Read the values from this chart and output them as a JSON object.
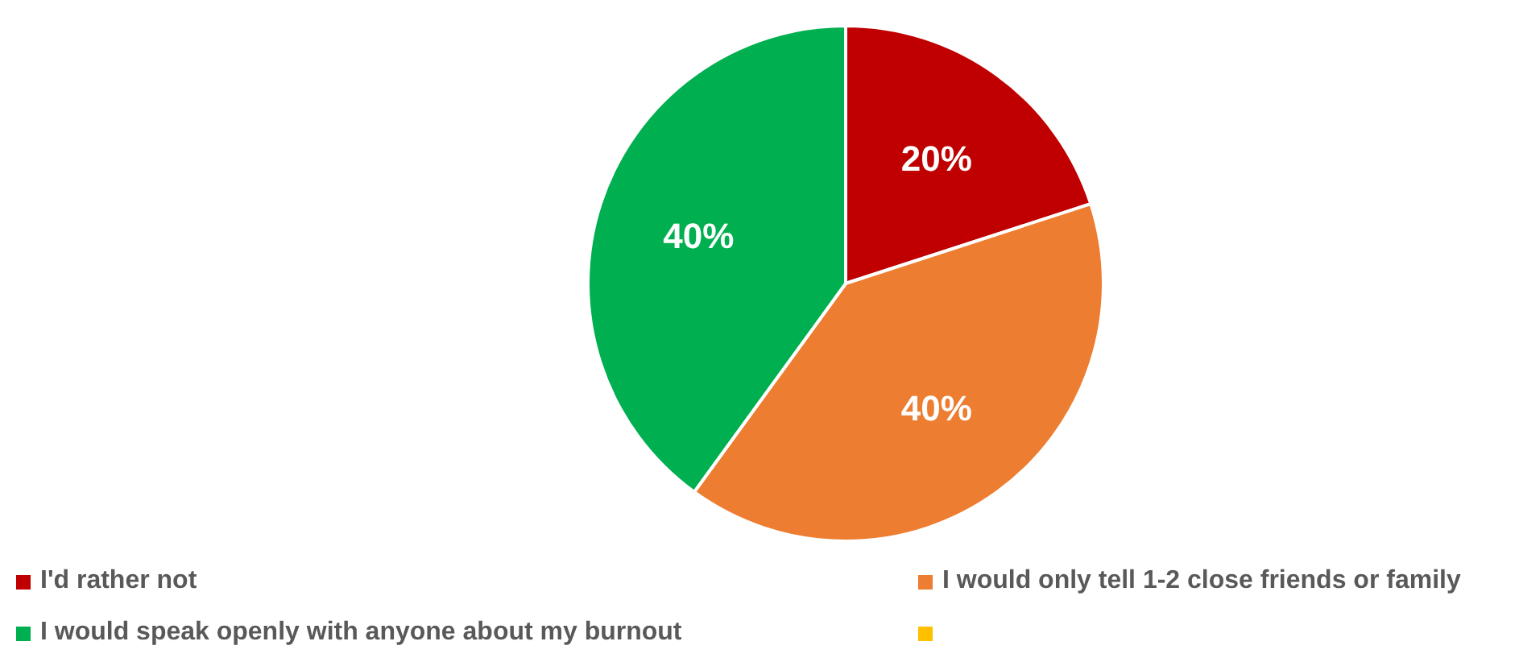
{
  "chart_data": {
    "type": "pie",
    "categories": [
      "I'd rather not",
      "I would only tell 1-2 close friends or family",
      "I would speak openly with anyone about my burnout",
      null
    ],
    "values": [
      20,
      40,
      40,
      0
    ],
    "colors": [
      "#c00000",
      "#ed7d31",
      "#00b050",
      "#ffc000"
    ],
    "value_labels": [
      "20%",
      "40%",
      "40%",
      null
    ],
    "legend": "bottom"
  }
}
